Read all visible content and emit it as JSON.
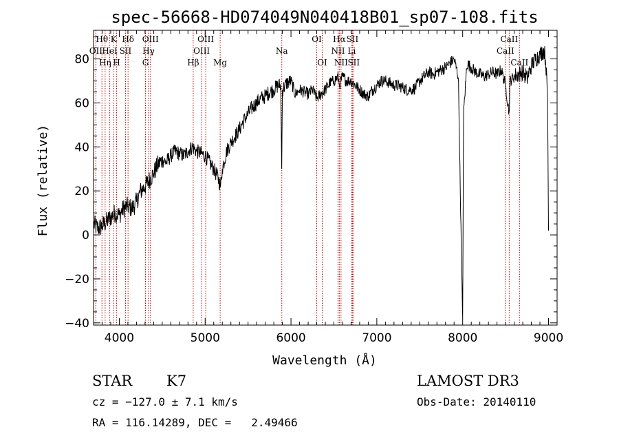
{
  "chart_data": {
    "type": "line",
    "title": "spec-56668-HD074049N040418B01_sp07-108.fits",
    "xlabel": "Wavelength (Å)",
    "ylabel": "Flux (relative)",
    "xlim": [
      3700,
      9100
    ],
    "ylim": [
      -41,
      93
    ],
    "x_ticks": [
      4000,
      5000,
      6000,
      7000,
      8000,
      9000
    ],
    "y_ticks": [
      -40,
      -20,
      0,
      20,
      40,
      60,
      80
    ],
    "grid": false,
    "series": [
      {
        "x": [
          3700,
          3750,
          3800,
          3850,
          3900,
          3950,
          4000,
          4050,
          4100,
          4150,
          4200,
          4250,
          4300,
          4350,
          4400,
          4450,
          4500,
          4550,
          4600,
          4650,
          4700,
          4750,
          4800,
          4850,
          4900,
          4950,
          5000,
          5050,
          5100,
          5150,
          5180,
          5200,
          5250,
          5300,
          5350,
          5400,
          5450,
          5500,
          5550,
          5600,
          5650,
          5700,
          5750,
          5800,
          5850,
          5880,
          5892,
          5900,
          5950,
          6000,
          6050,
          6100,
          6150,
          6200,
          6250,
          6300,
          6350,
          6400,
          6450,
          6500,
          6550,
          6563,
          6600,
          6650,
          6700,
          6750,
          6800,
          6850,
          6900,
          6950,
          7000,
          7050,
          7100,
          7150,
          7200,
          7250,
          7300,
          7350,
          7400,
          7450,
          7500,
          7550,
          7600,
          7650,
          7700,
          7750,
          7800,
          7850,
          7900,
          7950,
          7990,
          8000,
          8010,
          8050,
          8100,
          8150,
          8200,
          8250,
          8300,
          8350,
          8400,
          8450,
          8500,
          8542,
          8550,
          8600,
          8650,
          8700,
          8750,
          8800,
          8850,
          8900,
          8950,
          8970,
          8990,
          9000
        ],
        "values": [
          5,
          3,
          4,
          6,
          8,
          10,
          9,
          12,
          13,
          12,
          15,
          20,
          22,
          25,
          28,
          32,
          34,
          33,
          36,
          38,
          37,
          36,
          38,
          40,
          38,
          37,
          36,
          33,
          30,
          26,
          22,
          30,
          38,
          42,
          45,
          48,
          52,
          55,
          58,
          60,
          62,
          63,
          65,
          66,
          68,
          68,
          30,
          66,
          69,
          70,
          64,
          66,
          65,
          64,
          66,
          62,
          64,
          66,
          69,
          70,
          72,
          68,
          72,
          70,
          70,
          68,
          66,
          64,
          63,
          66,
          68,
          70,
          70,
          69,
          68,
          68,
          67,
          66,
          66,
          67,
          70,
          72,
          74,
          73,
          74,
          75,
          76,
          78,
          80,
          72,
          -20,
          -38,
          55,
          78,
          76,
          74,
          73,
          72,
          73,
          74,
          73,
          75,
          68,
          55,
          70,
          72,
          73,
          74,
          71,
          77,
          80,
          82,
          84,
          78,
          60,
          2
        ]
      }
    ],
    "spectral_lines": [
      {
        "label": "Hθ",
        "x": 3798,
        "row": 1
      },
      {
        "label": "OII",
        "x": 3727,
        "row": 2
      },
      {
        "label": "Hη",
        "x": 3835,
        "row": 3
      },
      {
        "label": "K",
        "x": 3934,
        "row": 1
      },
      {
        "label": "HeI",
        "x": 3889,
        "row": 2
      },
      {
        "label": "H",
        "x": 3969,
        "row": 3
      },
      {
        "label": "Hδ",
        "x": 4102,
        "row": 1
      },
      {
        "label": "SII",
        "x": 4072,
        "row": 2
      },
      {
        "label": "OIII",
        "x": 4363,
        "row": 1
      },
      {
        "label": "Hγ",
        "x": 4341,
        "row": 2
      },
      {
        "label": "G",
        "x": 4305,
        "row": 3
      },
      {
        "label": "OIII",
        "x": 5007,
        "row": 1
      },
      {
        "label": "OIII",
        "x": 4959,
        "row": 2
      },
      {
        "label": "Hβ",
        "x": 4861,
        "row": 3
      },
      {
        "label": "Mg",
        "x": 5175,
        "row": 3
      },
      {
        "label": "Na",
        "x": 5893,
        "row": 2
      },
      {
        "label": "OI",
        "x": 6300,
        "row": 1
      },
      {
        "label": "OI",
        "x": 6364,
        "row": 3
      },
      {
        "label": "Hα",
        "x": 6563,
        "row": 1
      },
      {
        "label": "NII",
        "x": 6548,
        "row": 2
      },
      {
        "label": "NII",
        "x": 6583,
        "row": 3
      },
      {
        "label": "SII",
        "x": 6716,
        "row": 1
      },
      {
        "label": "Li",
        "x": 6708,
        "row": 2
      },
      {
        "label": "SII",
        "x": 6731,
        "row": 3
      },
      {
        "label": "CaII",
        "x": 8542,
        "row": 1
      },
      {
        "label": "CaII",
        "x": 8498,
        "row": 2
      },
      {
        "label": "CaII",
        "x": 8662,
        "row": 3
      }
    ]
  },
  "info": {
    "class_label": "STAR",
    "subclass": "K7",
    "survey": "LAMOST DR3",
    "cz": "cz = −127.0 ± 7.1 km/s",
    "obs_date": "Obs-Date: 20140110",
    "coords": "RA = 116.14289, DEC =   2.49466"
  }
}
